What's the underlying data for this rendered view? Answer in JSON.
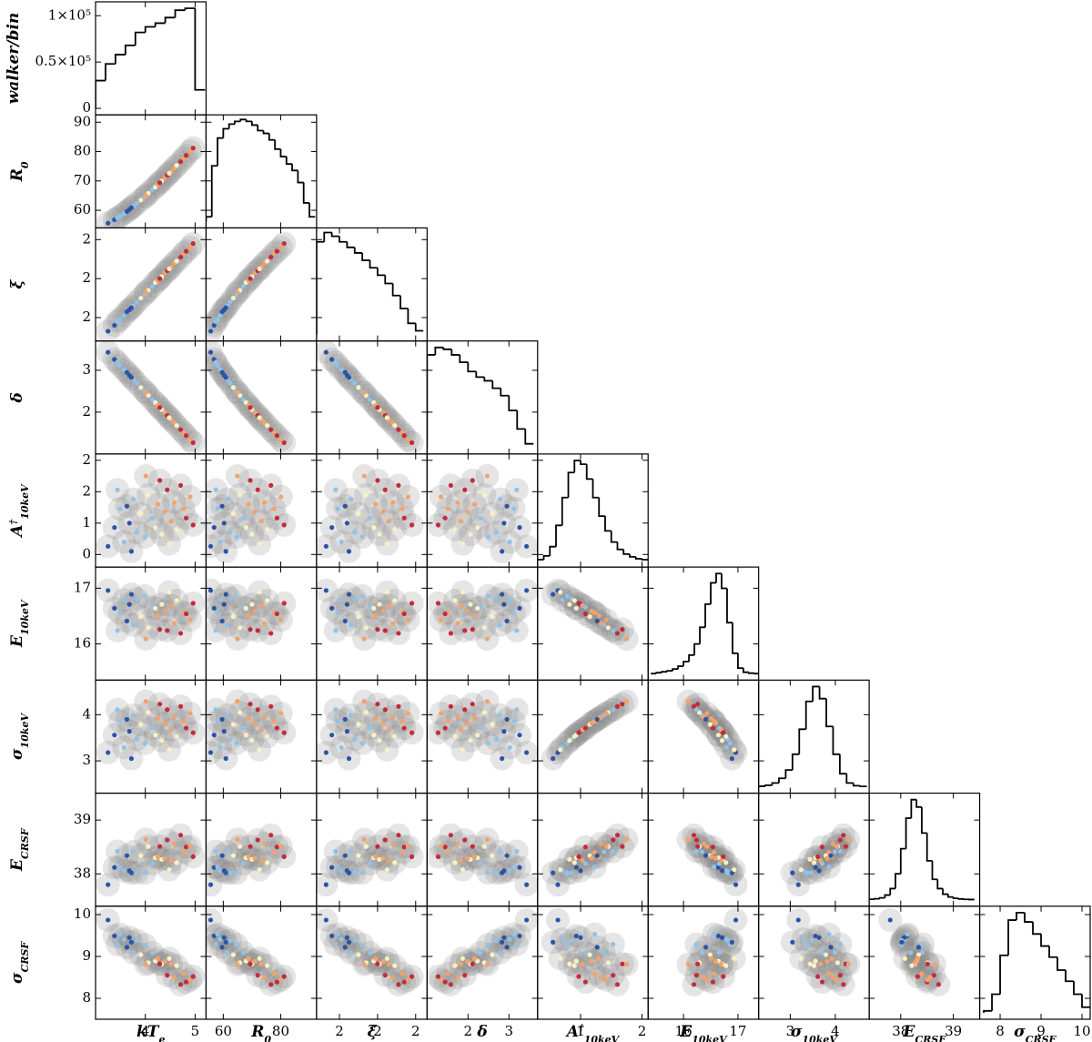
{
  "chart_data": {
    "type": "corner",
    "ylabel": "walker/bin",
    "ylim": [
      -7000,
      115000
    ],
    "yticks": [
      0,
      {
        "value": 50000,
        "label": "0.5×10⁵"
      },
      {
        "value": 100000,
        "label": "1×10⁵"
      }
    ],
    "sample_colors": [
      "#2b54a6",
      "#2b54a6",
      "#8fc3ea",
      "#8fc3ea",
      "#2b54a6",
      "#8fc3ea",
      "#8fc3ea",
      "#fbf0c2",
      "#8fc3ea",
      "#fbf0c2",
      "#8fc3ea",
      "#fbf0c2",
      "#f2a36b",
      "#fbf0c2",
      "#f2a36b",
      "#c42b3b",
      "#f2a36b",
      "#f2a36b",
      "#fbf0c2",
      "#c42b3b",
      "#f2a36b",
      "#c42b3b",
      "#f2a36b",
      "#2b54a6",
      "#c42b3b",
      "#8fc3ea",
      "#fbf0c2",
      "#f2a36b",
      "#c42b3b",
      "#2b54a6"
    ],
    "params": [
      {
        "label": "kT",
        "label_sub": "e",
        "lim": [
          3.0,
          5.22
        ],
        "ticks": [
          4,
          5
        ],
        "bins": [
          3.0,
          3.2,
          3.4,
          3.6,
          3.8,
          4.0,
          4.2,
          4.4,
          4.6,
          4.8,
          5.0,
          5.2
        ],
        "counts": [
          30000,
          48000,
          58000,
          68000,
          82000,
          88000,
          92000,
          98000,
          106000,
          108000,
          20000
        ],
        "samples": [
          3.25,
          3.38,
          3.49,
          3.57,
          3.68,
          3.76,
          3.83,
          3.91,
          3.99,
          4.06,
          4.14,
          4.2,
          4.25,
          4.33,
          4.39,
          4.44,
          4.52,
          4.58,
          4.63,
          4.71,
          4.77,
          4.82,
          4.9,
          3.72,
          4.29,
          3.44,
          4.48,
          4.01,
          4.96,
          3.63
        ]
      },
      {
        "label": "R",
        "label_sub": "0",
        "lim": [
          54,
          92.5
        ],
        "ticks": [
          60,
          70,
          80,
          90
        ],
        "xticks": [
          60,
          80
        ],
        "bins": [
          54,
          56,
          58,
          60,
          62,
          64,
          66,
          68,
          70,
          72,
          74,
          76,
          78,
          80,
          82,
          84,
          86,
          88,
          90,
          92
        ],
        "counts": [
          5000,
          60000,
          90000,
          100000,
          105000,
          108000,
          110000,
          108000,
          104000,
          98000,
          95000,
          88000,
          78000,
          70000,
          62000,
          55000,
          42000,
          20000,
          5000
        ],
        "samples": [
          55.6,
          56.8,
          58.0,
          58.9,
          60.3,
          61.4,
          62.4,
          63.5,
          64.6,
          65.8,
          67.0,
          67.9,
          68.8,
          70.0,
          71.0,
          72.0,
          73.3,
          74.3,
          75.3,
          76.6,
          77.7,
          78.7,
          80.1,
          60.9,
          69.4,
          57.4,
          72.6,
          64.9,
          81.2,
          59.6
        ]
      },
      {
        "label": "ξ",
        "lim": [
          1.68,
          2.26
        ],
        "ticks": [
          {
            "value": 1.8,
            "label": "2"
          },
          {
            "value": 2.0,
            "label": "2"
          },
          {
            "value": 2.2,
            "label": "2"
          }
        ],
        "bins": [
          1.68,
          1.72,
          1.76,
          1.8,
          1.84,
          1.88,
          1.92,
          1.96,
          2.0,
          2.04,
          2.08,
          2.12,
          2.16,
          2.2,
          2.24
        ],
        "counts": [
          100000,
          110000,
          106000,
          100000,
          94000,
          88000,
          80000,
          72000,
          64000,
          55000,
          42000,
          28000,
          12000,
          4000
        ],
        "samples": [
          1.73,
          1.76,
          1.79,
          1.81,
          1.84,
          1.86,
          1.88,
          1.9,
          1.92,
          1.94,
          1.96,
          1.98,
          1.99,
          2.01,
          2.03,
          2.04,
          2.06,
          2.08,
          2.09,
          2.11,
          2.13,
          2.14,
          2.16,
          1.85,
          2.0,
          1.78,
          2.05,
          1.93,
          2.18,
          1.83
        ]
      },
      {
        "label": "δ",
        "lim": [
          1.0,
          3.7
        ],
        "ticks": [
          2,
          3
        ],
        "bins": [
          1.0,
          1.2,
          1.4,
          1.6,
          1.8,
          2.0,
          2.2,
          2.4,
          2.6,
          2.8,
          3.0,
          3.2,
          3.4,
          3.6
        ],
        "counts": [
          100000,
          108000,
          106000,
          100000,
          92000,
          82000,
          76000,
          72000,
          64000,
          56000,
          40000,
          20000,
          4000
        ],
        "samples": [
          3.43,
          3.26,
          3.12,
          3.02,
          2.88,
          2.78,
          2.69,
          2.59,
          2.49,
          2.4,
          2.3,
          2.23,
          2.16,
          2.06,
          1.99,
          1.92,
          1.82,
          1.75,
          1.68,
          1.58,
          1.51,
          1.44,
          1.34,
          2.83,
          2.11,
          3.19,
          1.87,
          2.47,
          1.27,
          2.95
        ]
      },
      {
        "label": "A",
        "label_sup": "†",
        "label_sub": "10keV",
        "lim": [
          0.3,
          2.1
        ],
        "ticks": [
          {
            "value": 0.5,
            "label": "0"
          },
          1,
          {
            "value": 1.5,
            "label": "2"
          },
          2
        ],
        "xticks": [
          1,
          2
        ],
        "bins": [
          0.3,
          0.4,
          0.5,
          0.6,
          0.7,
          0.8,
          0.9,
          1.0,
          1.1,
          1.2,
          1.3,
          1.4,
          1.5,
          1.6,
          1.7,
          1.8,
          1.9,
          2.0,
          2.1
        ],
        "counts": [
          1000,
          5000,
          15000,
          38000,
          68000,
          95000,
          108000,
          104000,
          88000,
          68000,
          48000,
          32000,
          20000,
          12000,
          7000,
          4000,
          2000,
          1000
        ],
        "samples": [
          0.63,
          0.93,
          1.23,
          0.7,
          1.0,
          1.38,
          0.85,
          1.15,
          0.78,
          1.45,
          1.08,
          0.93,
          1.3,
          0.82,
          1.18,
          1.53,
          1.03,
          1.33,
          0.9,
          1.6,
          1.23,
          1.08,
          1.42,
          0.55,
          1.68,
          1.53,
          0.67,
          1.75,
          0.97,
          1.27
        ]
      },
      {
        "label": "E",
        "label_sub": "10keV",
        "lim": [
          15.35,
          17.38
        ],
        "ticks": [
          16,
          17
        ],
        "bins": [
          15.4,
          15.5,
          15.6,
          15.7,
          15.8,
          15.9,
          16.0,
          16.1,
          16.2,
          16.3,
          16.4,
          16.5,
          16.6,
          16.7,
          16.8,
          16.9,
          17.0,
          17.1,
          17.2,
          17.3,
          17.4
        ],
        "counts": [
          0,
          1000,
          2000,
          3000,
          5000,
          8000,
          13000,
          20000,
          32000,
          50000,
          75000,
          98000,
          108000,
          92000,
          55000,
          22000,
          6000,
          1500,
          500,
          0
        ],
        "samples": [
          16.96,
          16.64,
          16.56,
          16.79,
          16.71,
          16.34,
          16.81,
          16.49,
          16.86,
          16.29,
          16.66,
          16.64,
          16.51,
          16.71,
          16.59,
          16.24,
          16.69,
          16.37,
          16.78,
          16.19,
          16.56,
          16.54,
          16.43,
          16.89,
          16.26,
          16.24,
          16.93,
          16.09,
          16.73,
          16.41
        ]
      },
      {
        "label": "σ",
        "label_sub": "10keV",
        "lim": [
          2.3,
          4.75
        ],
        "ticks": [
          3,
          4
        ],
        "bins": [
          2.3,
          2.45,
          2.6,
          2.75,
          2.9,
          3.05,
          3.2,
          3.35,
          3.5,
          3.65,
          3.8,
          3.95,
          4.1,
          4.25,
          4.4,
          4.55,
          4.7
        ],
        "counts": [
          500,
          1500,
          4000,
          9000,
          18000,
          35000,
          62000,
          92000,
          108000,
          95000,
          65000,
          35000,
          14000,
          4000,
          1000,
          300
        ],
        "samples": [
          3.18,
          3.56,
          3.86,
          3.29,
          3.64,
          3.99,
          3.47,
          3.79,
          3.38,
          4.05,
          3.71,
          3.56,
          3.92,
          3.44,
          3.82,
          4.11,
          3.67,
          3.95,
          3.53,
          4.18,
          3.86,
          3.71,
          4.03,
          3.05,
          4.23,
          4.11,
          3.24,
          4.29,
          3.61,
          3.9
        ]
      },
      {
        "label": "E",
        "label_sub": "CRSF",
        "lim": [
          37.4,
          39.5
        ],
        "ticks": [
          38,
          39
        ],
        "bins": [
          37.4,
          37.5,
          37.6,
          37.7,
          37.8,
          37.9,
          38.0,
          38.1,
          38.2,
          38.3,
          38.4,
          38.5,
          38.6,
          38.7,
          38.8,
          38.9,
          39.0,
          39.1,
          39.2,
          39.3,
          39.4
        ],
        "counts": [
          500,
          1000,
          2000,
          5000,
          12000,
          28000,
          55000,
          88000,
          108000,
          100000,
          72000,
          42000,
          22000,
          12000,
          6000,
          3000,
          1500,
          800,
          400,
          200
        ],
        "samples": [
          37.8,
          38.12,
          38.13,
          38.06,
          38.06,
          38.41,
          38.02,
          38.34,
          38.02,
          38.51,
          38.19,
          38.3,
          38.32,
          38.27,
          38.29,
          38.63,
          38.25,
          38.56,
          38.21,
          38.72,
          38.4,
          38.5,
          38.51,
          38.02,
          38.51,
          38.42,
          38.08,
          38.64,
          38.32,
          38.34
        ]
      },
      {
        "label": "σ",
        "label_sub": "CRSF",
        "lim": [
          7.5,
          10.2
        ],
        "ticks": [
          8,
          9,
          10
        ],
        "bins": [
          7.6,
          7.8,
          8.0,
          8.2,
          8.4,
          8.6,
          8.8,
          9.0,
          9.2,
          9.4,
          9.6,
          9.8,
          10.0,
          10.2
        ],
        "counts": [
          2000,
          20000,
          62000,
          100000,
          108000,
          98000,
          85000,
          72000,
          60000,
          46000,
          34000,
          20000,
          6000
        ],
        "samples": [
          9.87,
          9.49,
          9.53,
          9.41,
          9.45,
          9.09,
          9.38,
          9.04,
          9.28,
          8.85,
          9.09,
          8.89,
          8.95,
          8.82,
          8.88,
          8.55,
          8.82,
          8.5,
          8.78,
          8.33,
          8.59,
          8.39,
          8.44,
          9.34,
          8.82,
          9.29,
          8.95,
          8.81,
          8.52,
          9.22
        ]
      }
    ]
  }
}
